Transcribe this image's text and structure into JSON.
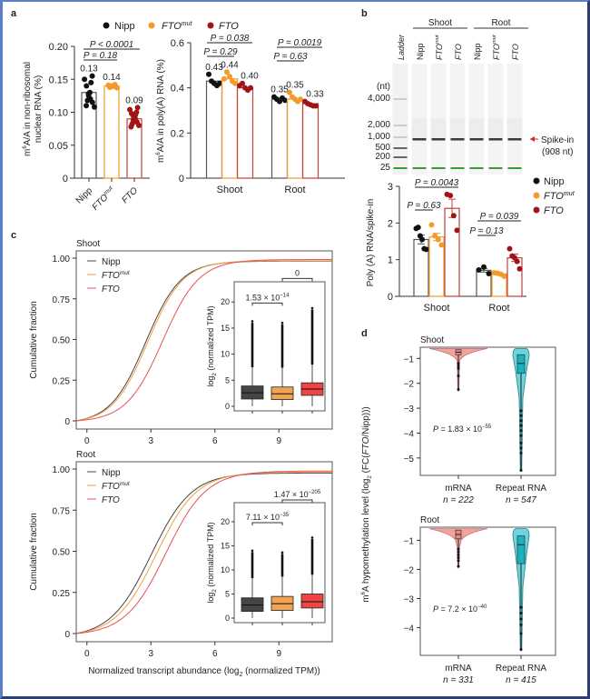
{
  "colors": {
    "nipp": "#111111",
    "fto_mut": "#f39a2b",
    "fto": "#a01418",
    "nipp_line": "#444444",
    "fto_mut_line": "#f0a040",
    "fto_line": "#e8505a",
    "box_nipp": "#454545",
    "box_fto_mut": "#f2a455",
    "box_fto": "#ee4444",
    "violin_mrna": "#f2a39a",
    "violin_repeat": "#3cc6d2",
    "ladder_green": "#3a9a3a",
    "spike_red": "#e02020"
  },
  "legend": {
    "nipp": "Nipp",
    "fto_mut_base": "FTO",
    "fto_mut_sup": "mut",
    "fto": "FTO"
  },
  "chart_data": [
    {
      "id": "a-left",
      "panel": "a",
      "type": "bar",
      "ylabel_line1": "m6A/A in non-ribosomal",
      "ylabel_line2": "nuclear RNA (%)",
      "ylim": [
        0,
        0.2
      ],
      "yticks": [
        "0",
        "0.05",
        "0.10",
        "0.15",
        "0.20"
      ],
      "categories": [
        "Nipp",
        "FTO mut",
        "FTO"
      ],
      "values": [
        0.13,
        0.14,
        0.09
      ],
      "value_labels": [
        "0.13",
        "0.14",
        "0.09"
      ],
      "points": [
        [
          0.155,
          0.15,
          0.145,
          0.14,
          0.13,
          0.128,
          0.125,
          0.12,
          0.118,
          0.115,
          0.11,
          0.108
        ],
        [
          0.142,
          0.141,
          0.14,
          0.139,
          0.138,
          0.137
        ],
        [
          0.107,
          0.104,
          0.1,
          0.098,
          0.096,
          0.094,
          0.092,
          0.09,
          0.088,
          0.085,
          0.082,
          0.08,
          0.078
        ]
      ],
      "pvalues": [
        {
          "text": "P < 0.0001",
          "from": 0,
          "to": 2
        },
        {
          "text": "P = 0.18",
          "from": 0,
          "to": 1
        }
      ]
    },
    {
      "id": "a-right",
      "panel": "a",
      "type": "bar",
      "ylabel": "m6A/A in poly(A) RNA (%)",
      "ylim": [
        0,
        0.6
      ],
      "yticks": [
        "0",
        "0.2",
        "0.4",
        "0.6"
      ],
      "groups": [
        "Shoot",
        "Root"
      ],
      "series": [
        {
          "name": "Nipp",
          "values": [
            0.43,
            0.35
          ],
          "labels": [
            "0.43",
            "0.35"
          ]
        },
        {
          "name": "FTO mut",
          "values": [
            0.44,
            0.35
          ],
          "labels": [
            "0.44",
            "0.35"
          ]
        },
        {
          "name": "FTO",
          "values": [
            0.4,
            0.33
          ],
          "labels": [
            "0.40",
            "0.33"
          ]
        }
      ],
      "points": [
        [
          [
            0.46,
            0.43,
            0.42,
            0.41,
            0.42
          ],
          [
            0.44,
            0.47,
            0.46,
            0.43,
            0.42
          ]
        ],
        [
          [
            0.44,
            0.47,
            0.45,
            0.43,
            0.42
          ],
          [
            0.38,
            0.36,
            0.35,
            0.34,
            0.35
          ]
        ],
        [
          [
            0.41,
            0.42,
            0.4,
            0.39,
            0.4
          ],
          [
            0.34,
            0.33,
            0.33,
            0.32,
            0.32
          ]
        ]
      ],
      "root_points": [
        [
          0.36,
          0.35,
          0.34,
          0.355,
          0.345
        ],
        [
          0.38,
          0.36,
          0.35,
          0.34,
          0.35
        ],
        [
          0.34,
          0.33,
          0.325,
          0.32,
          0.32
        ]
      ],
      "pvalues": [
        {
          "text": "P = 0.038",
          "group": 0,
          "from": 0,
          "to": 2
        },
        {
          "text": "P = 0.29",
          "group": 0,
          "from": 0,
          "to": 1
        },
        {
          "text": "P = 0.0019",
          "group": 1,
          "from": 0,
          "to": 2
        },
        {
          "text": "P = 0.63",
          "group": 1,
          "from": 0,
          "to": 1
        }
      ]
    },
    {
      "id": "b-gel",
      "panel": "b",
      "type": "table",
      "group_labels": [
        "Shoot",
        "Root"
      ],
      "lane_labels": [
        "Ladder",
        "Nipp",
        "FTO mut",
        "FTO",
        "Nipp",
        "FTO mut",
        "FTO"
      ],
      "ladder_unit": "(nt)",
      "ladder_sizes": [
        "4,000",
        "2,000",
        "1,000",
        "500",
        "200",
        "25"
      ],
      "annotation_line1": "Spike-in",
      "annotation_line2": "(908 nt)"
    },
    {
      "id": "b-bar",
      "panel": "b",
      "type": "bar",
      "ylabel": "Poly (A) RNA/spike-in",
      "ylim": [
        0,
        3
      ],
      "yticks": [
        "0",
        "1",
        "2",
        "3"
      ],
      "groups": [
        "Shoot",
        "Root"
      ],
      "series": [
        {
          "name": "Nipp",
          "values": [
            1.55,
            0.71
          ],
          "errors": [
            0.12,
            0.05
          ]
        },
        {
          "name": "FTO mut",
          "values": [
            1.62,
            0.61
          ],
          "errors": [
            0.1,
            0.02
          ]
        },
        {
          "name": "FTO",
          "values": [
            2.4,
            1.05
          ],
          "errors": [
            0.25,
            0.1
          ]
        }
      ],
      "points": [
        [
          [
            1.85,
            1.88,
            1.65,
            1.55,
            1.3,
            1.28
          ],
          [
            0.72,
            0.8,
            0.62
          ]
        ],
        [
          [
            1.95,
            1.65,
            1.55,
            1.4
          ],
          [
            0.64,
            0.63,
            0.6,
            0.55
          ]
        ],
        [
          [
            2.78,
            2.75,
            2.2,
            1.8
          ],
          [
            1.3,
            1.1,
            1.05,
            0.95,
            0.75
          ]
        ]
      ],
      "pvalues": [
        {
          "text": "P = 0.0043",
          "group": 0,
          "from": 0,
          "to": 2
        },
        {
          "text": "P = 0.63",
          "group": 0,
          "from": 0,
          "to": 1
        },
        {
          "text": "P = 0.039",
          "group": 1,
          "from": 0,
          "to": 2
        },
        {
          "text": "P = 0.13",
          "group": 1,
          "from": 0,
          "to": 1
        }
      ]
    },
    {
      "id": "c-shoot",
      "panel": "c",
      "type": "line",
      "title": "Shoot",
      "ylabel": "Cumulative fraction",
      "xlim": [
        -0.5,
        11.5
      ],
      "ylim": [
        0,
        1
      ],
      "xticks": [
        0,
        3,
        6,
        9
      ],
      "yticks": [
        "0",
        "0.25",
        "0.50",
        "0.75",
        "1.00"
      ],
      "series": [
        {
          "name": "Nipp",
          "mu": 2.75,
          "s": 0.82
        },
        {
          "name": "FTO mut",
          "mu": 2.85,
          "s": 0.82
        },
        {
          "name": "FTO",
          "mu": 3.55,
          "s": 0.85
        }
      ],
      "inset": {
        "type": "box",
        "ylabel": "log2 (normalized TPM)",
        "ylim": [
          0,
          23
        ],
        "yticks": [
          "0",
          "5",
          "10",
          "15",
          "20"
        ],
        "boxes": [
          {
            "name": "Nipp",
            "q1": 1.4,
            "median": 2.6,
            "q3": 3.9,
            "min": 0,
            "whisker_hi": 7.5,
            "outlier_max": 16.3
          },
          {
            "name": "FTO mut",
            "q1": 1.3,
            "median": 2.4,
            "q3": 3.7,
            "min": 0,
            "whisker_hi": 7.4,
            "outlier_max": 16.0
          },
          {
            "name": "FTO",
            "q1": 2.1,
            "median": 3.3,
            "q3": 4.5,
            "min": 0,
            "whisker_hi": 8.0,
            "outlier_max": 18.8
          }
        ],
        "comparisons": [
          {
            "text_base": "1.53 × 10",
            "text_exp": "−14",
            "from": 0,
            "to": 1
          },
          {
            "text_base": "0",
            "text_exp": "",
            "from": 1,
            "to": 2
          }
        ]
      }
    },
    {
      "id": "c-root",
      "panel": "c",
      "type": "line",
      "title": "Root",
      "ylabel": "Cumulative fraction",
      "xlabel": "Normalized transcript abundance (log2 (normalized TPM))",
      "xlim": [
        -0.5,
        11.5
      ],
      "ylim": [
        0,
        1
      ],
      "xticks": [
        0,
        3,
        6,
        9
      ],
      "yticks": [
        "0",
        "0.25",
        "0.50",
        "0.75",
        "1.00"
      ],
      "series": [
        {
          "name": "Nipp",
          "mu": 3.0,
          "s": 0.95
        },
        {
          "name": "FTO mut",
          "mu": 3.25,
          "s": 0.95
        },
        {
          "name": "FTO",
          "mu": 3.7,
          "s": 0.95
        }
      ],
      "inset": {
        "type": "box",
        "ylabel": "log2 (normalized TPM)",
        "ylim": [
          0,
          23
        ],
        "yticks": [
          "0",
          "5",
          "10",
          "15",
          "20"
        ],
        "boxes": [
          {
            "name": "Nipp",
            "q1": 1.4,
            "median": 2.7,
            "q3": 4.2,
            "min": 0,
            "whisker_hi": 8.3,
            "outlier_max": 14.0
          },
          {
            "name": "FTO mut",
            "q1": 1.6,
            "median": 3.0,
            "q3": 4.5,
            "min": 0,
            "whisker_hi": 8.6,
            "outlier_max": 13.6
          },
          {
            "name": "FTO",
            "q1": 2.1,
            "median": 3.4,
            "q3": 5.0,
            "min": 0,
            "whisker_hi": 9.0,
            "outlier_max": 16.7
          }
        ],
        "comparisons": [
          {
            "text_base": "7.11 × 10",
            "text_exp": "−35",
            "from": 0,
            "to": 1
          },
          {
            "text_base": "1.47 × 10",
            "text_exp": "−205",
            "from": 1,
            "to": 2
          }
        ]
      }
    },
    {
      "id": "d-shoot",
      "panel": "d",
      "type": "scatter",
      "subtype": "violin",
      "title": "Shoot",
      "ylim": [
        -5.7,
        -0.55
      ],
      "yticks": [
        -1,
        -2,
        -3,
        -4,
        -5
      ],
      "ytick_labels": [
        "−1",
        "−2",
        "−3",
        "−4",
        "−5"
      ],
      "categories": [
        "mRNA",
        "Repeat RNA"
      ],
      "n_labels": [
        "n = 222",
        "n = 547"
      ],
      "pvalue_base": "P = 1.83 × 10",
      "pvalue_exp": "−55",
      "violins": [
        {
          "name": "mRNA",
          "q1": -0.85,
          "median": -0.75,
          "q3": -0.65,
          "whisker_lo": -1.1,
          "outliers": [
            -1.2,
            -1.3,
            -1.4,
            -1.7,
            -2.25
          ],
          "min": -2.3,
          "max": -0.6
        },
        {
          "name": "Repeat RNA",
          "q1": -1.6,
          "median": -1.2,
          "q3": -0.85,
          "whisker_lo": -2.8,
          "outliers": [
            -3.1,
            -3.3,
            -3.5,
            -3.7,
            -3.9,
            -4.1,
            -4.4,
            -4.6,
            -4.8,
            -5.5
          ],
          "min": -5.5,
          "max": -0.6
        }
      ]
    },
    {
      "id": "d-root",
      "panel": "d",
      "type": "scatter",
      "subtype": "violin",
      "title": "Root",
      "ylim": [
        -4.95,
        -0.55
      ],
      "yticks": [
        -1,
        -2,
        -3,
        -4
      ],
      "ytick_labels": [
        "−1",
        "−2",
        "−3",
        "−4"
      ],
      "categories": [
        "mRNA",
        "Repeat RNA"
      ],
      "n_labels": [
        "n = 331",
        "n = 415"
      ],
      "pvalue_base": "P = 7.2 × 10",
      "pvalue_exp": "−40",
      "violins": [
        {
          "name": "mRNA",
          "q1": -0.95,
          "median": -0.8,
          "q3": -0.65,
          "whisker_lo": -1.25,
          "outliers": [
            -1.3,
            -1.4,
            -1.5,
            -1.6,
            -1.7,
            -1.9
          ],
          "min": -1.9,
          "max": -0.6
        },
        {
          "name": "Repeat RNA",
          "q1": -1.8,
          "median": -1.15,
          "q3": -0.85,
          "whisker_lo": -3.0,
          "outliers": [
            -3.3,
            -3.5,
            -3.7,
            -3.9,
            -4.2,
            -4.75
          ],
          "min": -4.75,
          "max": -0.6
        }
      ]
    }
  ],
  "panel_d_ylabel": "m6A hypomethylation level (log2 (FC(FTO/Nipp)))",
  "panel_letters": [
    "a",
    "b",
    "c",
    "d"
  ]
}
